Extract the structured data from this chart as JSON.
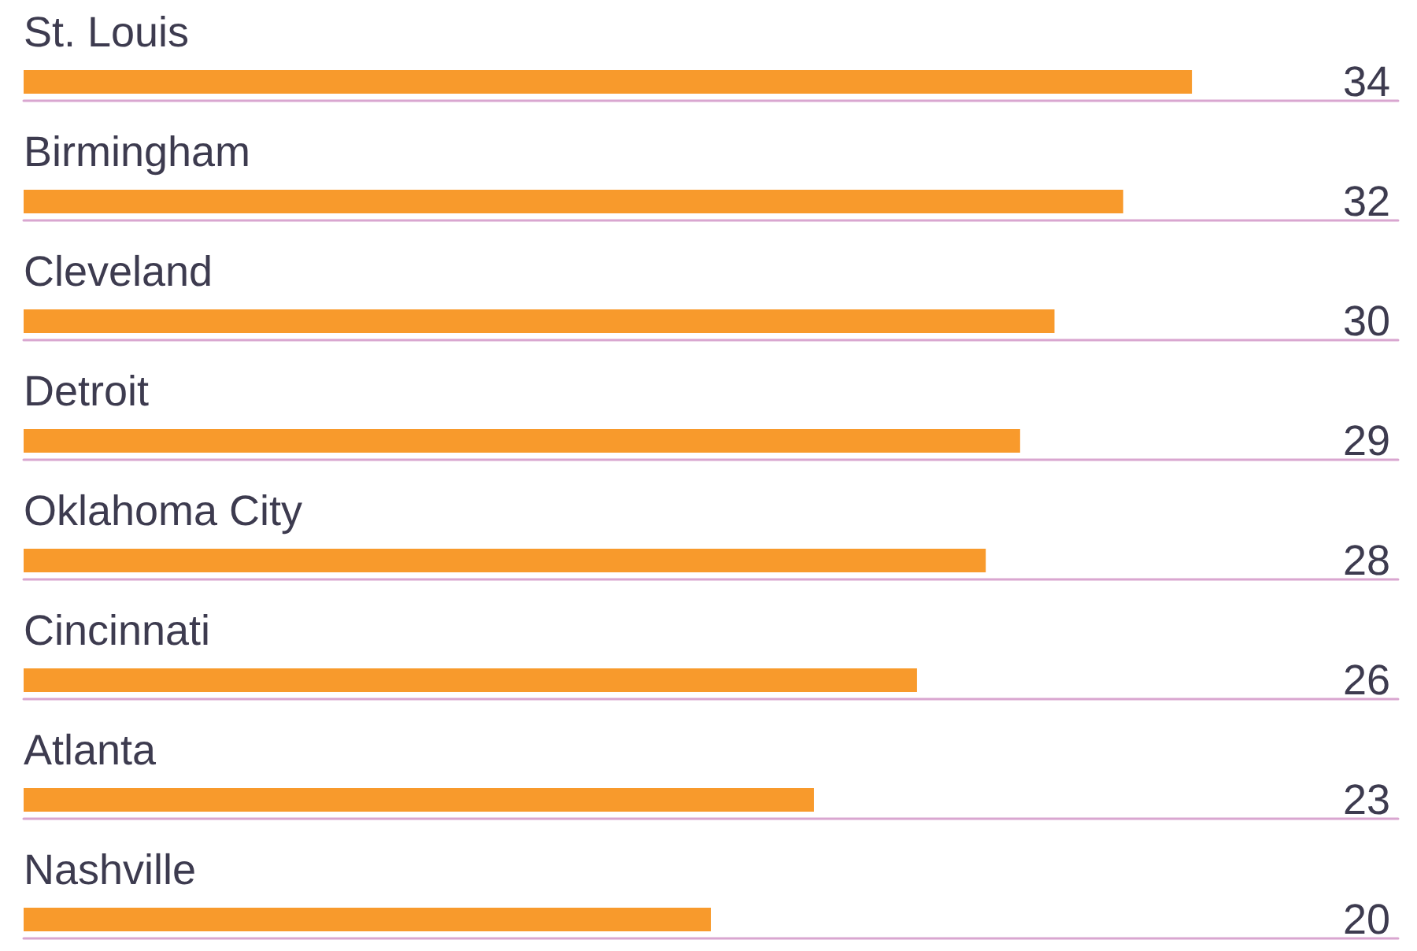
{
  "chart_data": {
    "type": "bar",
    "orientation": "horizontal",
    "categories": [
      "St. Louis",
      "Birmingham",
      "Cleveland",
      "Detroit",
      "Oklahoma City",
      "Cincinnati",
      "Atlanta",
      "Nashville"
    ],
    "values": [
      34,
      32,
      30,
      29,
      28,
      26,
      23,
      20
    ],
    "color": "#f89a2c",
    "data_labels": true,
    "grid": "y",
    "tick_labels": "y"
  }
}
